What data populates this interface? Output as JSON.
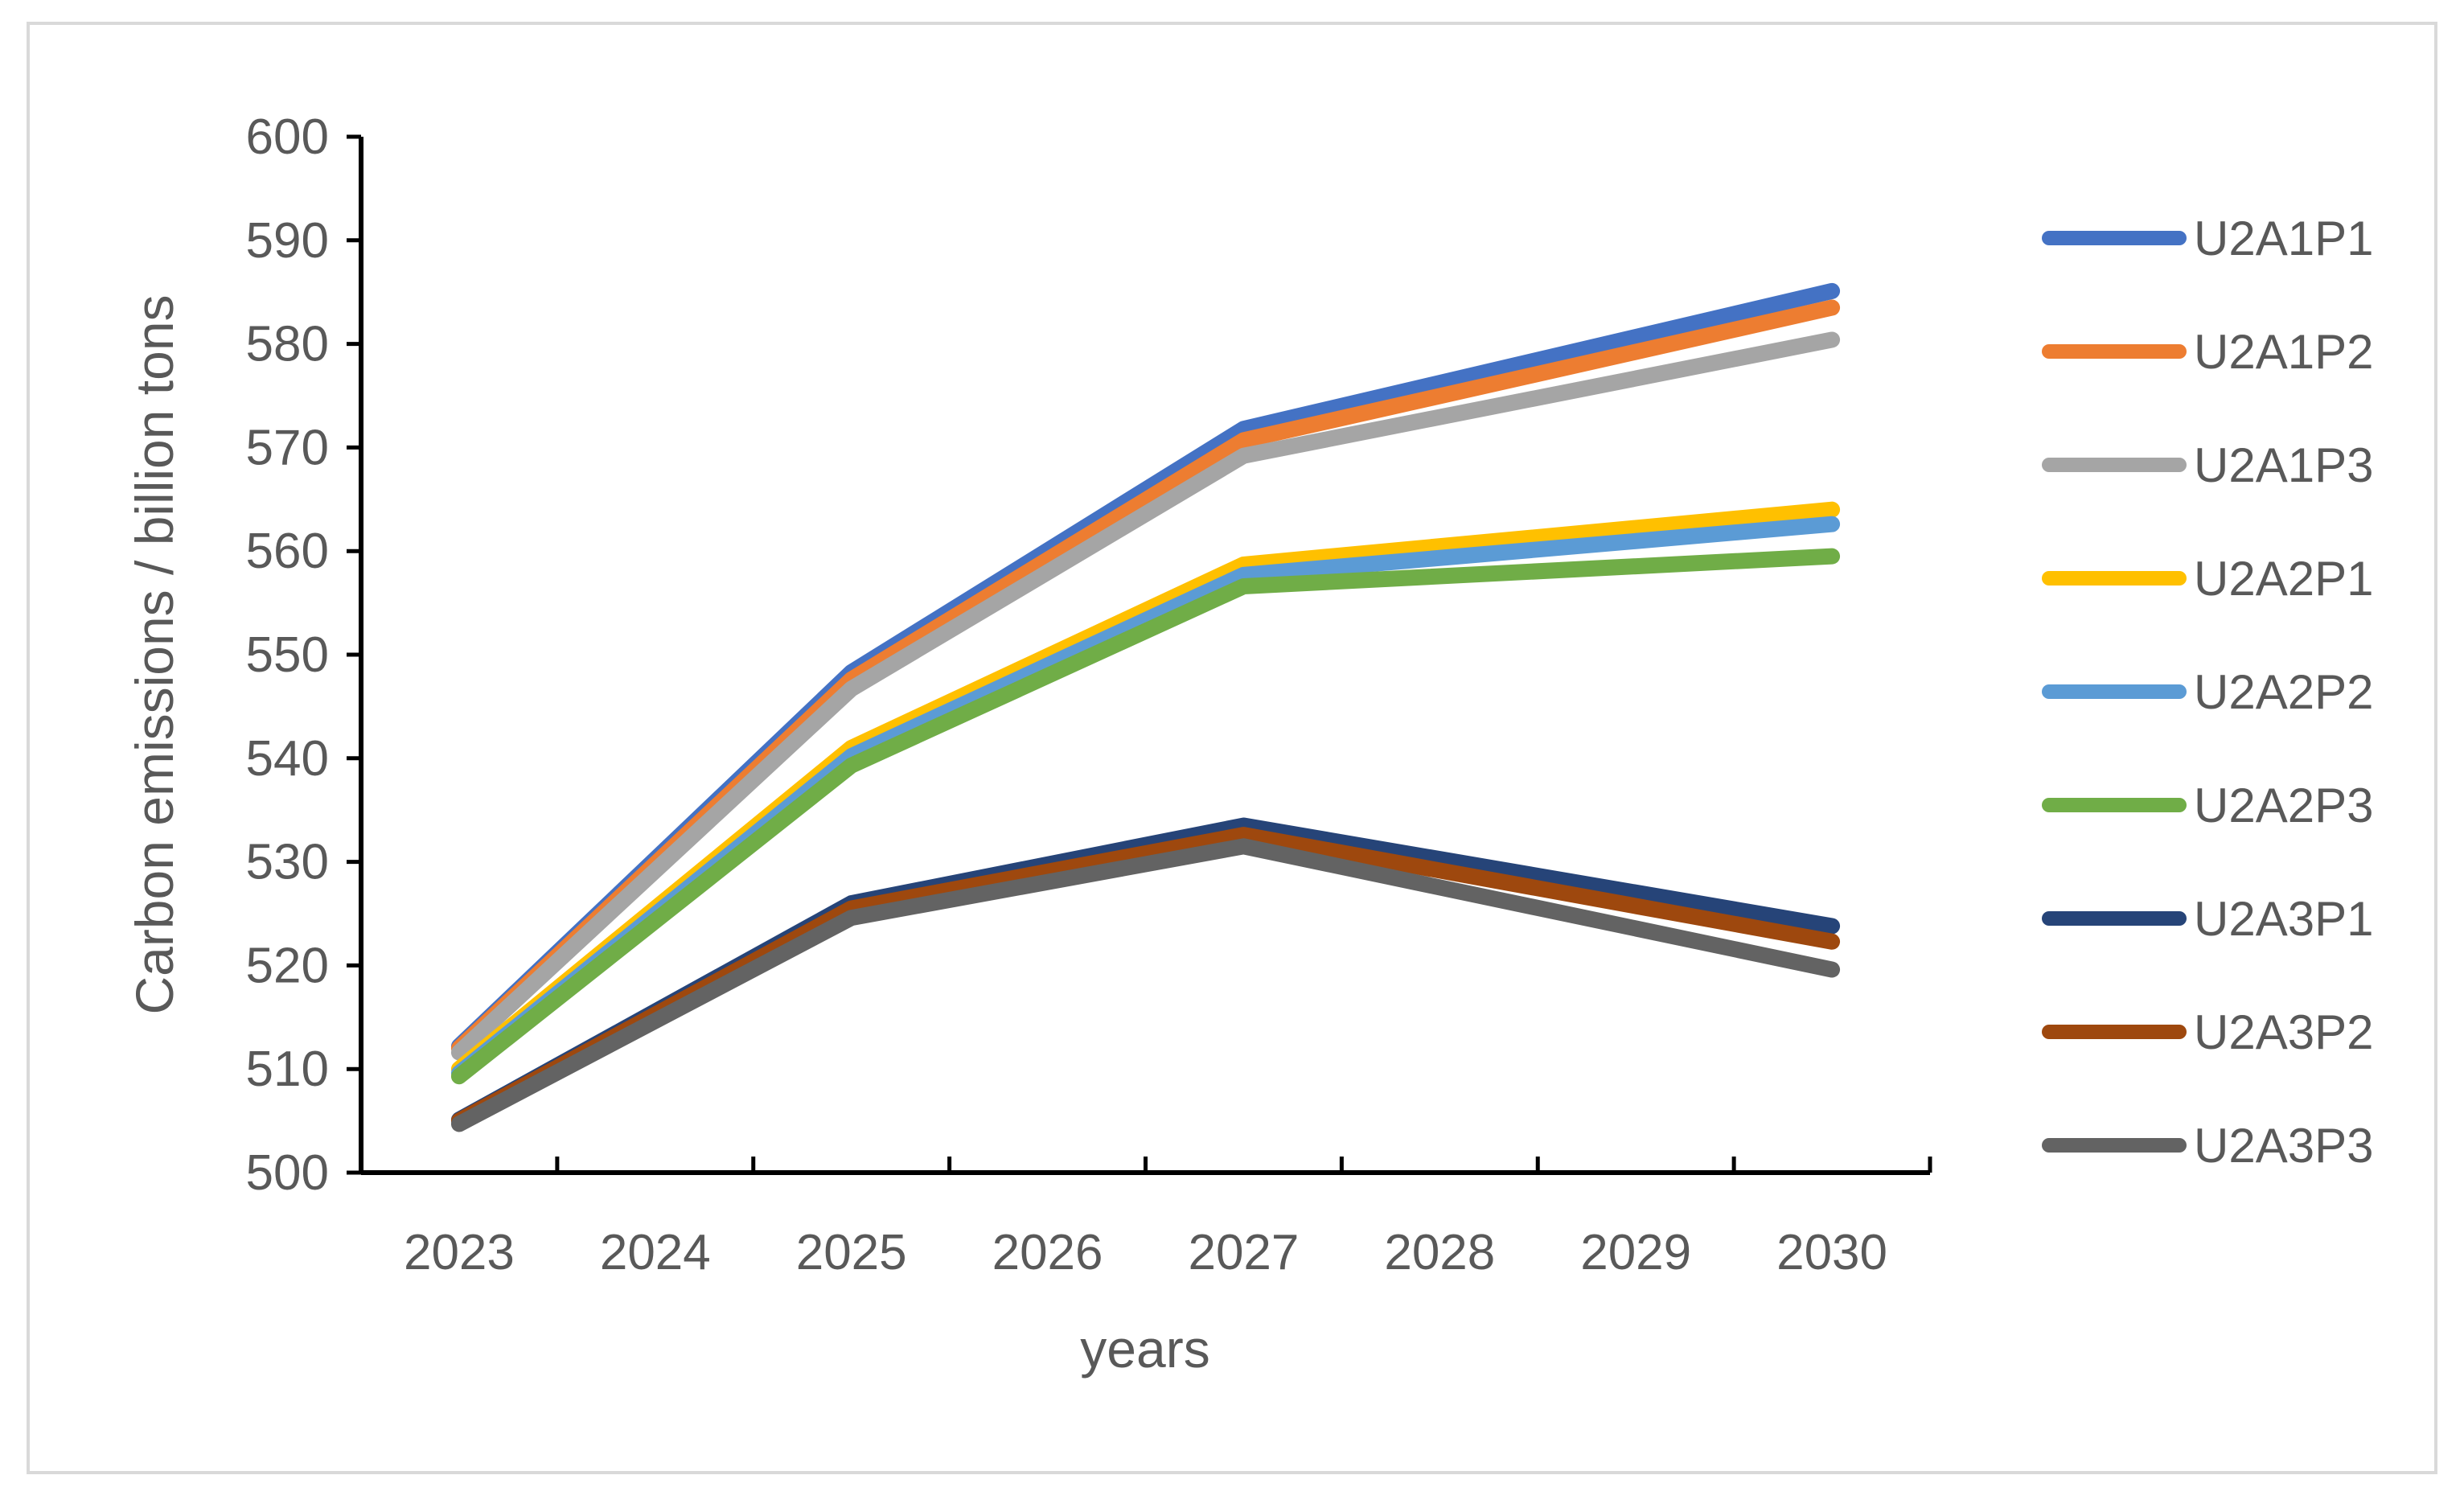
{
  "chart_data": {
    "type": "line",
    "title": "",
    "xlabel": "years",
    "ylabel": "Carbon emissions / billion tons",
    "categories": [
      "2023",
      "2024",
      "2025",
      "2026",
      "2027",
      "2028",
      "2029",
      "2030"
    ],
    "ylim": [
      500,
      600
    ],
    "yticks": [
      500,
      510,
      520,
      530,
      540,
      550,
      560,
      570,
      580,
      590,
      600
    ],
    "grid": false,
    "legend_position": "right",
    "series": [
      {
        "name": "U2A1P1",
        "color": "#4472C4",
        "x": [
          "2023",
          "2025",
          "2027",
          "2030"
        ],
        "values": [
          512.2,
          548.3,
          571.8,
          585.1
        ]
      },
      {
        "name": "U2A1P2",
        "color": "#ED7D31",
        "x": [
          "2023",
          "2025",
          "2027",
          "2030"
        ],
        "values": [
          512.0,
          547.6,
          570.7,
          583.5
        ]
      },
      {
        "name": "U2A1P3",
        "color": "#A5A5A5",
        "x": [
          "2023",
          "2025",
          "2027",
          "2030"
        ],
        "values": [
          511.6,
          546.7,
          569.2,
          580.4
        ]
      },
      {
        "name": "U2A2P1",
        "color": "#FFC000",
        "x": [
          "2023",
          "2025",
          "2027",
          "2030"
        ],
        "values": [
          510.0,
          541.0,
          558.7,
          564.0
        ]
      },
      {
        "name": "U2A2P2",
        "color": "#5B9BD5",
        "x": [
          "2023",
          "2025",
          "2027",
          "2030"
        ],
        "values": [
          509.6,
          540.2,
          557.7,
          562.6
        ]
      },
      {
        "name": "U2A2P3",
        "color": "#70AD47",
        "x": [
          "2023",
          "2025",
          "2027",
          "2030"
        ],
        "values": [
          509.3,
          539.3,
          556.6,
          559.5
        ]
      },
      {
        "name": "U2A3P1",
        "color": "#264478",
        "x": [
          "2023",
          "2025",
          "2027",
          "2030"
        ],
        "values": [
          505.1,
          526.0,
          533.5,
          523.8
        ]
      },
      {
        "name": "U2A3P2",
        "color": "#9E480E",
        "x": [
          "2023",
          "2025",
          "2027",
          "2030"
        ],
        "values": [
          505.0,
          525.5,
          532.6,
          522.3
        ]
      },
      {
        "name": "U2A3P3",
        "color": "#636363",
        "x": [
          "2023",
          "2025",
          "2027",
          "2030"
        ],
        "values": [
          504.7,
          524.6,
          531.5,
          519.6
        ]
      }
    ]
  }
}
